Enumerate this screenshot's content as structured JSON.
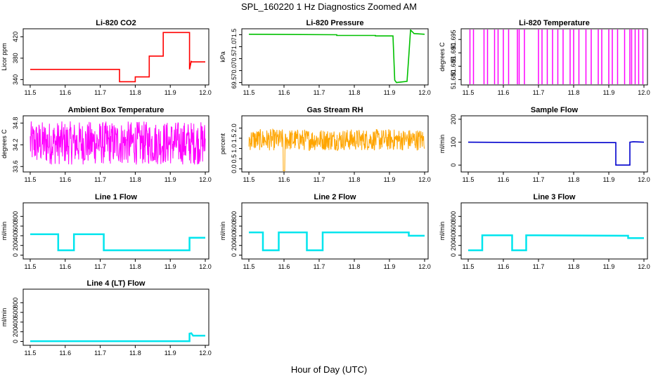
{
  "figure": {
    "title": "SPL_160220 1 Hz Diagnostics Zoomed AM",
    "xlabel": "Hour of Day (UTC)"
  },
  "chart_data": [
    {
      "type": "line",
      "title": "Li-820 CO2",
      "ylabel": "Licor ppm",
      "color": "#ff0000",
      "xlim": [
        11.48,
        12.01
      ],
      "ylim": [
        330,
        435
      ],
      "xticks": [
        "11.5",
        "11.6",
        "11.7",
        "11.8",
        "11.9",
        "12.0"
      ],
      "yticks": [
        340,
        380,
        420
      ],
      "x": [
        11.5,
        11.755,
        11.755,
        11.8,
        11.8,
        11.84,
        11.84,
        11.88,
        11.88,
        11.955,
        11.955,
        11.96,
        11.96,
        12.0
      ],
      "y": [
        359,
        359,
        336,
        336,
        345,
        345,
        384,
        384,
        428,
        428,
        359,
        375,
        373,
        373
      ]
    },
    {
      "type": "line",
      "title": "Li-820 Pressure",
      "ylabel": "kPa",
      "color": "#00c000",
      "xlim": [
        11.48,
        12.01
      ],
      "ylim": [
        69.4,
        71.75
      ],
      "xticks": [
        "11.5",
        "11.6",
        "11.7",
        "11.8",
        "11.9",
        "12.0"
      ],
      "yticks": [
        69.5,
        70.0,
        70.5,
        71.0,
        71.5
      ],
      "x": [
        11.5,
        11.75,
        11.75,
        11.86,
        11.86,
        11.91,
        11.915,
        11.92,
        11.95,
        11.955,
        11.96,
        11.97,
        12.0
      ],
      "y": [
        71.52,
        71.5,
        71.47,
        71.47,
        71.45,
        71.45,
        69.6,
        69.5,
        69.55,
        70.6,
        71.7,
        71.55,
        71.52
      ]
    },
    {
      "type": "line",
      "title": "Li-820 Temperature",
      "ylabel": "degrees C",
      "color": "#ff00ff",
      "xlim": [
        11.48,
        12.01
      ],
      "ylim": [
        51.678,
        51.699
      ],
      "xticks": [
        "11.5",
        "11.6",
        "11.7",
        "11.8",
        "11.9",
        "12.0"
      ],
      "yticks": [
        51.68,
        51.685,
        51.69,
        51.695
      ],
      "baseline": 51.699,
      "low": 51.678,
      "spikes": [
        11.505,
        11.515,
        11.545,
        11.555,
        11.575,
        11.585,
        11.6,
        11.615,
        11.64,
        11.645,
        11.66,
        11.7,
        11.71,
        11.725,
        11.74,
        11.755,
        11.77,
        11.79,
        11.8,
        11.815,
        11.835,
        11.85,
        11.87,
        11.88,
        11.9,
        11.91,
        11.925,
        11.945,
        11.96,
        11.965,
        11.975,
        11.985,
        11.997
      ]
    },
    {
      "type": "line",
      "title": "Ambient Box Temperature",
      "ylabel": "degrees C",
      "color": "#ff00ff",
      "xlim": [
        11.48,
        12.01
      ],
      "ylim": [
        33.45,
        35.0
      ],
      "xticks": [
        "11.5",
        "11.6",
        "11.7",
        "11.8",
        "11.9",
        "12.0"
      ],
      "yticks": [
        33.6,
        34.2,
        34.8
      ],
      "band_low": 33.65,
      "band_high": 34.85
    },
    {
      "type": "line",
      "title": "Gas Stream RH",
      "ylabel": "percent",
      "color": "#ffa500",
      "xlim": [
        11.48,
        12.01
      ],
      "ylim": [
        -0.15,
        2.6
      ],
      "xticks": [
        "11.5",
        "11.6",
        "11.7",
        "11.8",
        "11.9",
        "12.0"
      ],
      "yticks": [
        0.0,
        0.5,
        1.0,
        1.5,
        2.0
      ],
      "band_low": 0.9,
      "band_high": 1.95
    },
    {
      "type": "line",
      "title": "Sample Flow",
      "ylabel": "ml/min",
      "color": "#0000cd",
      "xlim": [
        11.48,
        12.01
      ],
      "ylim": [
        -30,
        215
      ],
      "xticks": [
        "11.5",
        "11.6",
        "11.7",
        "11.8",
        "11.9",
        "12.0"
      ],
      "yticks": [
        0,
        100,
        200
      ],
      "x": [
        11.5,
        11.7,
        11.8,
        11.92,
        11.92,
        11.96,
        11.96,
        11.97,
        12.0
      ],
      "y": [
        100,
        98,
        98,
        98,
        0,
        0,
        100,
        102,
        100
      ]
    },
    {
      "type": "line",
      "title": "Line 1 Flow",
      "ylabel": "ml/min",
      "color": "#00e5ee",
      "xlim": [
        11.48,
        12.01
      ],
      "ylim": [
        -80,
        1080
      ],
      "xticks": [
        "11.5",
        "11.6",
        "11.7",
        "11.8",
        "11.9",
        "12.0"
      ],
      "yticks": [
        0,
        200,
        400,
        600,
        800
      ],
      "x": [
        11.5,
        11.58,
        11.58,
        11.625,
        11.625,
        11.71,
        11.71,
        11.955,
        11.955,
        12.0
      ],
      "y": [
        430,
        430,
        100,
        100,
        430,
        430,
        100,
        100,
        360,
        360
      ]
    },
    {
      "type": "line",
      "title": "Line 2 Flow",
      "ylabel": "ml/min",
      "color": "#00e5ee",
      "xlim": [
        11.48,
        12.01
      ],
      "ylim": [
        -80,
        1080
      ],
      "xticks": [
        "11.5",
        "11.6",
        "11.7",
        "11.8",
        "11.9",
        "12.0"
      ],
      "yticks": [
        0,
        200,
        400,
        600,
        800
      ],
      "x": [
        11.5,
        11.54,
        11.54,
        11.585,
        11.585,
        11.665,
        11.665,
        11.71,
        11.71,
        11.955,
        11.955,
        12.0
      ],
      "y": [
        470,
        470,
        100,
        100,
        470,
        470,
        100,
        100,
        470,
        470,
        400,
        400
      ]
    },
    {
      "type": "line",
      "title": "Line 3 Flow",
      "ylabel": "ml/min",
      "color": "#00e5ee",
      "xlim": [
        11.48,
        12.01
      ],
      "ylim": [
        -80,
        1080
      ],
      "xticks": [
        "11.5",
        "11.6",
        "11.7",
        "11.8",
        "11.9",
        "12.0"
      ],
      "yticks": [
        0,
        200,
        400,
        600,
        800
      ],
      "x": [
        11.5,
        11.54,
        11.54,
        11.625,
        11.625,
        11.665,
        11.665,
        11.955,
        11.955,
        12.0
      ],
      "y": [
        100,
        100,
        410,
        410,
        100,
        100,
        410,
        400,
        350,
        350
      ]
    },
    {
      "type": "line",
      "title": "Line 4 (LT) Flow",
      "ylabel": "ml/min",
      "color": "#00e5ee",
      "xlim": [
        11.48,
        12.01
      ],
      "ylim": [
        -80,
        1080
      ],
      "xticks": [
        "11.5",
        "11.6",
        "11.7",
        "11.8",
        "11.9",
        "12.0"
      ],
      "yticks": [
        0,
        200,
        400,
        600,
        800
      ],
      "x": [
        11.5,
        11.955,
        11.955,
        11.96,
        11.965,
        12.0
      ],
      "y": [
        5,
        5,
        160,
        170,
        120,
        120
      ]
    }
  ]
}
